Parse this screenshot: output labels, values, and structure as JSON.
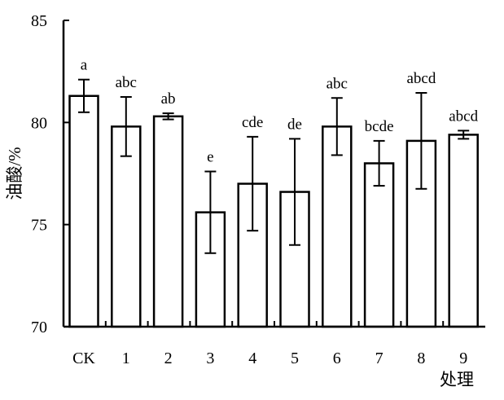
{
  "chart_data": {
    "type": "bar",
    "title": "",
    "xlabel": "处理",
    "ylabel": "油酸/%",
    "ylim": [
      70,
      85
    ],
    "yticks": [
      70,
      75,
      80,
      85
    ],
    "grid": false,
    "legend": "none",
    "categories": [
      "CK",
      "1",
      "2",
      "3",
      "4",
      "5",
      "6",
      "7",
      "8",
      "9"
    ],
    "series": [
      {
        "values": [
          81.3,
          79.8,
          80.3,
          75.6,
          77.0,
          76.6,
          79.8,
          78.0,
          79.1,
          79.4
        ],
        "errors": [
          0.8,
          1.45,
          0.15,
          2.0,
          2.3,
          2.6,
          1.4,
          1.1,
          2.35,
          0.2
        ],
        "significance": [
          "a",
          "abc",
          "ab",
          "e",
          "cde",
          "de",
          "abc",
          "bcde",
          "abcd",
          "abcd"
        ]
      }
    ],
    "bar_fill": "#ffffff",
    "bar_stroke": "#000000"
  }
}
